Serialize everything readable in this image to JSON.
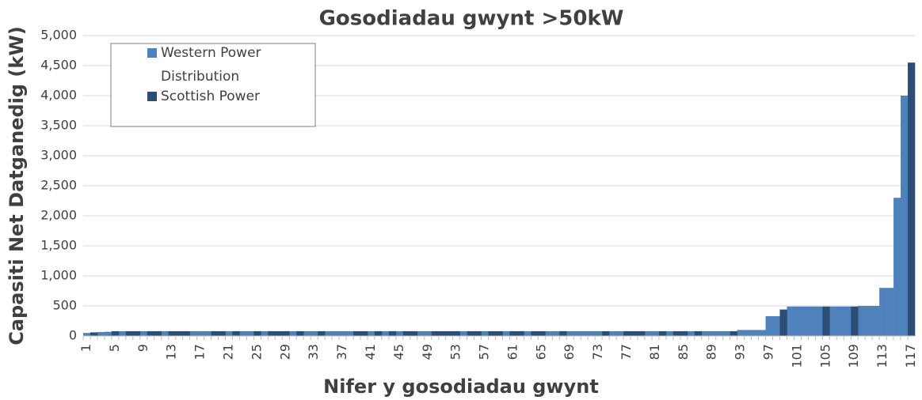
{
  "chart_data": {
    "type": "bar",
    "title": "Gosodiadau gwynt >50kW",
    "x_label": "Nifer y gosodiadau gwynt",
    "y_label": "Capasiti Net Datganedig (kW)",
    "categories": [
      "1",
      null,
      null,
      null,
      "5",
      null,
      null,
      null,
      "9",
      null,
      null,
      null,
      "13",
      null,
      null,
      null,
      "17",
      null,
      null,
      null,
      "21",
      null,
      null,
      null,
      "25",
      null,
      null,
      null,
      "29",
      null,
      null,
      null,
      "33",
      null,
      null,
      null,
      "37",
      null,
      null,
      null,
      "41",
      null,
      null,
      null,
      "45",
      null,
      null,
      null,
      "49",
      null,
      null,
      null,
      "53",
      null,
      null,
      null,
      "57",
      null,
      null,
      null,
      "61",
      null,
      null,
      null,
      "65",
      null,
      null,
      null,
      "69",
      null,
      null,
      null,
      "73",
      null,
      null,
      null,
      "77",
      null,
      null,
      null,
      "81",
      null,
      null,
      null,
      "85",
      null,
      null,
      null,
      "89",
      null,
      null,
      null,
      "93",
      null,
      null,
      null,
      "97",
      null,
      null,
      null,
      "101",
      null,
      null,
      null,
      "105",
      null,
      null,
      null,
      "109",
      null,
      null,
      null,
      "113",
      null,
      null,
      null,
      "117"
    ],
    "series": [
      {
        "name": "Western Power Distribution",
        "color": "#4f81bd",
        "values": [
          50,
          null,
          65,
          70,
          null,
          80,
          null,
          null,
          80,
          null,
          null,
          80,
          null,
          null,
          null,
          80,
          80,
          80,
          null,
          null,
          80,
          null,
          80,
          80,
          null,
          80,
          null,
          null,
          null,
          80,
          null,
          80,
          80,
          null,
          80,
          80,
          80,
          80,
          null,
          null,
          80,
          null,
          80,
          null,
          80,
          null,
          null,
          80,
          80,
          null,
          null,
          null,
          null,
          80,
          null,
          null,
          80,
          null,
          null,
          80,
          null,
          null,
          80,
          null,
          null,
          80,
          80,
          null,
          80,
          80,
          80,
          80,
          80,
          null,
          80,
          80,
          null,
          null,
          null,
          80,
          80,
          null,
          80,
          null,
          null,
          80,
          null,
          80,
          80,
          80,
          80,
          null,
          100,
          100,
          100,
          100,
          330,
          330,
          null,
          490,
          490,
          490,
          490,
          490,
          null,
          490,
          490,
          490,
          null,
          500,
          500,
          500,
          800,
          800,
          2300,
          4000,
          null
        ]
      },
      {
        "name": "Scottish Power",
        "color": "#2c4d75",
        "values": [
          null,
          60,
          null,
          null,
          80,
          null,
          80,
          80,
          null,
          80,
          80,
          null,
          80,
          80,
          80,
          null,
          null,
          null,
          80,
          80,
          null,
          80,
          null,
          null,
          80,
          null,
          80,
          80,
          80,
          null,
          80,
          null,
          null,
          80,
          null,
          null,
          null,
          null,
          80,
          80,
          null,
          80,
          null,
          80,
          null,
          80,
          80,
          null,
          null,
          80,
          80,
          80,
          80,
          null,
          80,
          80,
          null,
          80,
          80,
          null,
          80,
          80,
          null,
          80,
          80,
          null,
          null,
          80,
          null,
          null,
          null,
          null,
          null,
          80,
          null,
          null,
          80,
          80,
          80,
          null,
          null,
          80,
          null,
          80,
          80,
          null,
          80,
          null,
          null,
          null,
          null,
          80,
          null,
          null,
          null,
          null,
          null,
          null,
          440,
          null,
          null,
          null,
          null,
          null,
          490,
          null,
          null,
          null,
          490,
          null,
          null,
          null,
          null,
          null,
          null,
          null,
          4550
        ]
      }
    ],
    "ylim": [
      0,
      5000
    ],
    "yticks": [
      0,
      500,
      {
        "value": 1000,
        "label": "1,000"
      },
      {
        "value": 1500,
        "label": "1,500"
      },
      {
        "value": 2000,
        "label": "2,000"
      },
      {
        "value": 2500,
        "label": "2,500"
      },
      {
        "value": 3000,
        "label": "3,000"
      },
      {
        "value": 3500,
        "label": "3,500"
      },
      {
        "value": 4000,
        "label": "4,000"
      },
      {
        "value": 4500,
        "label": "4,500"
      },
      {
        "value": 5000,
        "label": "5,000"
      }
    ],
    "grid": true,
    "legend": "upper left"
  }
}
